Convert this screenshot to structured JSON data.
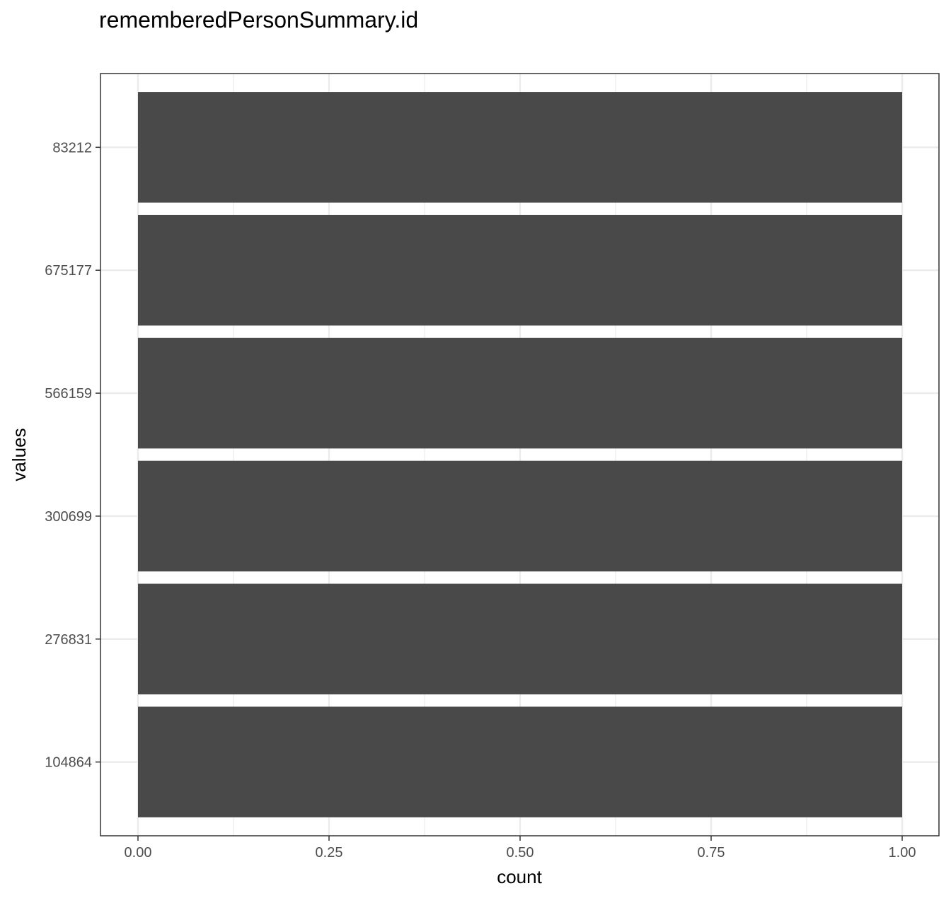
{
  "chart_data": {
    "type": "bar",
    "orientation": "horizontal",
    "title": "rememberedPersonSummary.id",
    "xlabel": "count",
    "ylabel": "values",
    "categories": [
      "83212",
      "675177",
      "566159",
      "300699",
      "276831",
      "104864"
    ],
    "values": [
      1,
      1,
      1,
      1,
      1,
      1
    ],
    "xlim": [
      0,
      1
    ],
    "xticks": [
      "0.00",
      "0.25",
      "0.50",
      "0.75",
      "1.00"
    ],
    "grid": true,
    "legend": "none",
    "colors": {
      "bar": "#494949",
      "grid": "#ebebeb",
      "panel_border": "#333333"
    }
  }
}
